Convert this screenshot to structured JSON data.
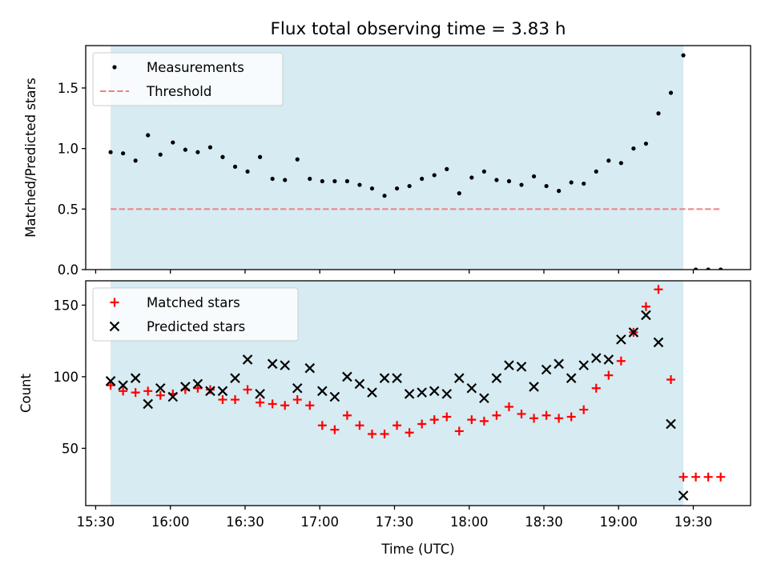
{
  "title": "Flux total observing time = 3.83 h",
  "colors": {
    "band": "#add8e6",
    "threshold": "#f08080",
    "matched": "#ff0000",
    "predicted": "#000000",
    "measurements": "#000000"
  },
  "chart_data": [
    {
      "type": "scatter",
      "ylabel": "Matched/Predicted stars",
      "xlim": [
        "15:26",
        "19:53"
      ],
      "ylim": [
        0,
        1.85
      ],
      "yticks": [
        "0.0",
        "0.5",
        "1.0",
        "1.5"
      ],
      "legend_position": "top-left",
      "observing_window": [
        "15:36",
        "19:26"
      ],
      "series": [
        {
          "name": "Measurements",
          "marker": "dot",
          "x": [
            "15:36",
            "15:41",
            "15:46",
            "15:51",
            "15:56",
            "16:01",
            "16:06",
            "16:11",
            "16:16",
            "16:21",
            "16:26",
            "16:31",
            "16:36",
            "16:41",
            "16:46",
            "16:51",
            "16:56",
            "17:01",
            "17:06",
            "17:11",
            "17:16",
            "17:21",
            "17:26",
            "17:31",
            "17:36",
            "17:41",
            "17:46",
            "17:51",
            "17:56",
            "18:01",
            "18:06",
            "18:11",
            "18:16",
            "18:21",
            "18:26",
            "18:31",
            "18:36",
            "18:41",
            "18:46",
            "18:51",
            "18:56",
            "19:01",
            "19:06",
            "19:11",
            "19:16",
            "19:21",
            "19:26",
            "19:31",
            "19:36",
            "19:41"
          ],
          "y": [
            0.97,
            0.96,
            0.9,
            1.11,
            0.95,
            1.05,
            0.99,
            0.97,
            1.01,
            0.93,
            0.85,
            0.81,
            0.93,
            0.75,
            0.74,
            0.91,
            0.75,
            0.73,
            0.73,
            0.73,
            0.7,
            0.67,
            0.61,
            0.67,
            0.69,
            0.75,
            0.78,
            0.83,
            0.63,
            0.76,
            0.81,
            0.74,
            0.73,
            0.7,
            0.77,
            0.69,
            0.65,
            0.72,
            0.71,
            0.81,
            0.9,
            0.88,
            1.0,
            1.04,
            1.29,
            1.46,
            1.77,
            0.0,
            0.0,
            0.0
          ]
        },
        {
          "name": "Threshold",
          "marker": "dashed-line",
          "x": [
            "15:36",
            "19:41"
          ],
          "y": [
            0.5,
            0.5
          ]
        }
      ]
    },
    {
      "type": "scatter",
      "ylabel": "Count",
      "xlabel": "Time (UTC)",
      "xticks": [
        "15:30",
        "16:00",
        "16:30",
        "17:00",
        "17:30",
        "18:00",
        "18:30",
        "19:00",
        "19:30"
      ],
      "xlim": [
        "15:26",
        "19:53"
      ],
      "ylim": [
        10,
        167
      ],
      "yticks": [
        "50",
        "100",
        "150"
      ],
      "legend_position": "top-left",
      "observing_window": [
        "15:36",
        "19:26"
      ],
      "series": [
        {
          "name": "Matched stars",
          "marker": "plus",
          "x": [
            "15:36",
            "15:41",
            "15:46",
            "15:51",
            "15:56",
            "16:01",
            "16:06",
            "16:11",
            "16:16",
            "16:21",
            "16:26",
            "16:31",
            "16:36",
            "16:41",
            "16:46",
            "16:51",
            "16:56",
            "17:01",
            "17:06",
            "17:11",
            "17:16",
            "17:21",
            "17:26",
            "17:31",
            "17:36",
            "17:41",
            "17:46",
            "17:51",
            "17:56",
            "18:01",
            "18:06",
            "18:11",
            "18:16",
            "18:21",
            "18:26",
            "18:31",
            "18:36",
            "18:41",
            "18:46",
            "18:51",
            "18:56",
            "19:01",
            "19:06",
            "19:11",
            "19:16",
            "19:21",
            "19:26",
            "19:31",
            "19:36",
            "19:41"
          ],
          "y": [
            94,
            90,
            89,
            90,
            87,
            88,
            91,
            92,
            91,
            84,
            84,
            91,
            82,
            81,
            80,
            84,
            80,
            66,
            63,
            73,
            66,
            60,
            60,
            66,
            61,
            67,
            70,
            72,
            62,
            70,
            69,
            73,
            79,
            74,
            71,
            73,
            71,
            72,
            77,
            92,
            101,
            111,
            131,
            149,
            161,
            98,
            30,
            30,
            30,
            30
          ]
        },
        {
          "name": "Predicted stars",
          "marker": "x",
          "x": [
            "15:36",
            "15:41",
            "15:46",
            "15:51",
            "15:56",
            "16:01",
            "16:06",
            "16:11",
            "16:16",
            "16:21",
            "16:26",
            "16:31",
            "16:36",
            "16:41",
            "16:46",
            "16:51",
            "16:56",
            "17:01",
            "17:06",
            "17:11",
            "17:16",
            "17:21",
            "17:26",
            "17:31",
            "17:36",
            "17:41",
            "17:46",
            "17:51",
            "17:56",
            "18:01",
            "18:06",
            "18:11",
            "18:16",
            "18:21",
            "18:26",
            "18:31",
            "18:36",
            "18:41",
            "18:46",
            "18:51",
            "18:56",
            "19:01",
            "19:06",
            "19:11",
            "19:16",
            "19:21",
            "19:26"
          ],
          "y": [
            97,
            94,
            99,
            81,
            92,
            86,
            93,
            95,
            90,
            90,
            99,
            112,
            88,
            109,
            108,
            92,
            106,
            90,
            86,
            100,
            95,
            89,
            99,
            99,
            88,
            89,
            90,
            88,
            99,
            92,
            85,
            99,
            108,
            107,
            93,
            105,
            109,
            99,
            108,
            113,
            112,
            126,
            131,
            143,
            124,
            67,
            17
          ]
        }
      ]
    }
  ]
}
